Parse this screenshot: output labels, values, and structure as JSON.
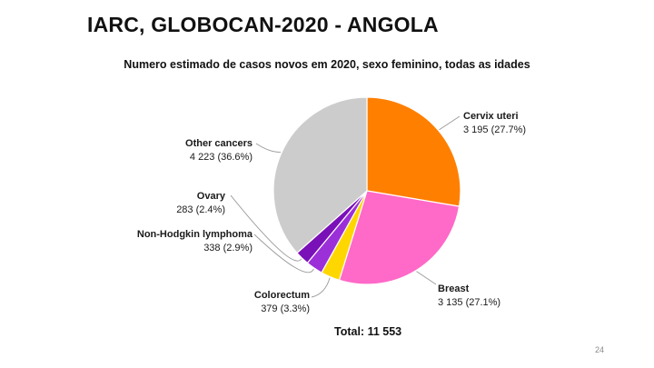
{
  "slide": {
    "title": "IARC, GLOBOCAN-2020 - ANGOLA",
    "page_number": "24"
  },
  "chart_data": {
    "type": "pie",
    "title": "Numero estimado de casos novos em 2020, sexo feminino, todas as idades",
    "total_label": "Total: 11 553",
    "slices": [
      {
        "name": "Cervix uteri",
        "value": 3195,
        "label": "3 195 (27.7%)",
        "percent": 27.7,
        "color": "#ff7f00"
      },
      {
        "name": "Breast",
        "value": 3135,
        "label": "3 135 (27.1%)",
        "percent": 27.1,
        "color": "#ff69c8"
      },
      {
        "name": "Colorectum",
        "value": 379,
        "label": "379 (3.3%)",
        "percent": 3.3,
        "color": "#ffd700"
      },
      {
        "name": "Non-Hodgkin lymphoma",
        "value": 338,
        "label": "338 (2.9%)",
        "percent": 2.9,
        "color": "#9b30d9"
      },
      {
        "name": "Ovary",
        "value": 283,
        "label": "283 (2.4%)",
        "percent": 2.4,
        "color": "#7a10b8"
      },
      {
        "name": "Other cancers",
        "value": 4223,
        "label": "4 223 (36.6%)",
        "percent": 36.6,
        "color": "#cccccc"
      }
    ]
  }
}
